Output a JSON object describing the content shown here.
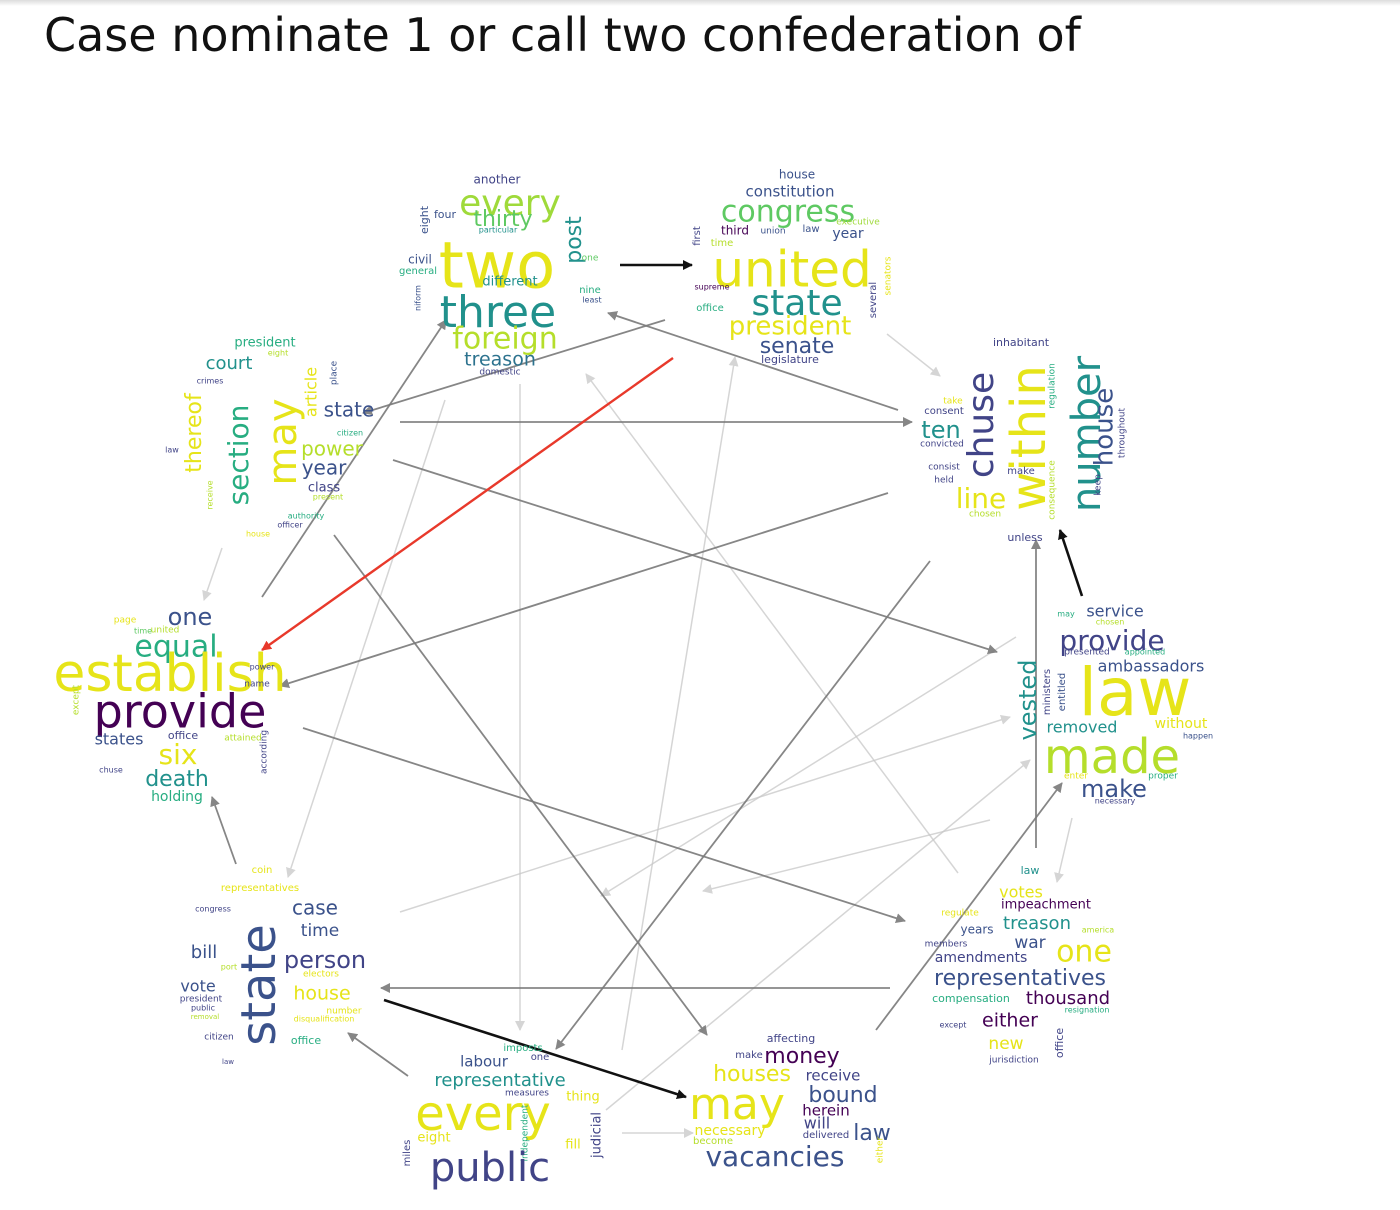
{
  "figure": {
    "title": "Case nominate 1 or call two confederation of"
  },
  "palette": {
    "highlight_edge": "#e8392b",
    "strong_edge": "#111111",
    "mid_edge": "#7a7a7a",
    "light_edge": "#c8c8c8",
    "word_colors": [
      "#440154",
      "#3b528b",
      "#21918c",
      "#2c728e",
      "#5ec962",
      "#b5de2b",
      "#e6e419",
      "#414487",
      "#27ad81",
      "#9fda3a"
    ]
  },
  "nodes": [
    {
      "id": "A",
      "words": [
        {
          "t": "another"
        },
        {
          "t": "every"
        },
        {
          "t": "four"
        },
        {
          "t": "thirty"
        },
        {
          "t": "particular"
        },
        {
          "t": "eight"
        },
        {
          "t": "two"
        },
        {
          "t": "post"
        },
        {
          "t": "one"
        },
        {
          "t": "civil"
        },
        {
          "t": "general"
        },
        {
          "t": "different"
        },
        {
          "t": "nine"
        },
        {
          "t": "least"
        },
        {
          "t": "niform"
        },
        {
          "t": "three"
        },
        {
          "t": "foreign"
        },
        {
          "t": "treason"
        },
        {
          "t": "domestic"
        }
      ]
    },
    {
      "id": "B",
      "words": [
        {
          "t": "house"
        },
        {
          "t": "constitution"
        },
        {
          "t": "congress"
        },
        {
          "t": "executive"
        },
        {
          "t": "third"
        },
        {
          "t": "union"
        },
        {
          "t": "law"
        },
        {
          "t": "year"
        },
        {
          "t": "first"
        },
        {
          "t": "time"
        },
        {
          "t": "united"
        },
        {
          "t": "supreme"
        },
        {
          "t": "state"
        },
        {
          "t": "office"
        },
        {
          "t": "several"
        },
        {
          "t": "senators"
        },
        {
          "t": "president"
        },
        {
          "t": "senate"
        },
        {
          "t": "legislature"
        }
      ]
    },
    {
      "id": "C",
      "words": [
        {
          "t": "inhabitant"
        },
        {
          "t": "take"
        },
        {
          "t": "consent"
        },
        {
          "t": "ten"
        },
        {
          "t": "convicted"
        },
        {
          "t": "number"
        },
        {
          "t": "consist"
        },
        {
          "t": "held"
        },
        {
          "t": "chuse"
        },
        {
          "t": "within"
        },
        {
          "t": "regulation"
        },
        {
          "t": "make"
        },
        {
          "t": "line"
        },
        {
          "t": "chosen"
        },
        {
          "t": "consequence"
        },
        {
          "t": "house"
        },
        {
          "t": "keep"
        },
        {
          "t": "throughout"
        },
        {
          "t": "unless"
        }
      ]
    },
    {
      "id": "D",
      "words": [
        {
          "t": "may"
        },
        {
          "t": "service"
        },
        {
          "t": "chosen"
        },
        {
          "t": "provide"
        },
        {
          "t": "presented"
        },
        {
          "t": "appointed"
        },
        {
          "t": "ministers"
        },
        {
          "t": "entitled"
        },
        {
          "t": "ambassadors"
        },
        {
          "t": "vested"
        },
        {
          "t": "law"
        },
        {
          "t": "removed"
        },
        {
          "t": "without"
        },
        {
          "t": "happen"
        },
        {
          "t": "made"
        },
        {
          "t": "enter"
        },
        {
          "t": "proper"
        },
        {
          "t": "make"
        },
        {
          "t": "necessary"
        }
      ]
    },
    {
      "id": "E",
      "words": [
        {
          "t": "law"
        },
        {
          "t": "votes"
        },
        {
          "t": "impeachment"
        },
        {
          "t": "regulate"
        },
        {
          "t": "treason"
        },
        {
          "t": "america"
        },
        {
          "t": "years"
        },
        {
          "t": "members"
        },
        {
          "t": "war"
        },
        {
          "t": "one"
        },
        {
          "t": "amendments"
        },
        {
          "t": "representatives"
        },
        {
          "t": "compensation"
        },
        {
          "t": "thousand"
        },
        {
          "t": "resignation"
        },
        {
          "t": "except"
        },
        {
          "t": "either"
        },
        {
          "t": "new"
        },
        {
          "t": "jurisdiction"
        },
        {
          "t": "office"
        }
      ]
    },
    {
      "id": "F",
      "words": [
        {
          "t": "affecting"
        },
        {
          "t": "make"
        },
        {
          "t": "money"
        },
        {
          "t": "houses"
        },
        {
          "t": "receive"
        },
        {
          "t": "may"
        },
        {
          "t": "bound"
        },
        {
          "t": "herein"
        },
        {
          "t": "will"
        },
        {
          "t": "necessary"
        },
        {
          "t": "delivered"
        },
        {
          "t": "law"
        },
        {
          "t": "become"
        },
        {
          "t": "vacancies"
        },
        {
          "t": "either"
        }
      ]
    },
    {
      "id": "G",
      "words": [
        {
          "t": "imposts"
        },
        {
          "t": "labour"
        },
        {
          "t": "one"
        },
        {
          "t": "representative"
        },
        {
          "t": "measures"
        },
        {
          "t": "thing"
        },
        {
          "t": "every"
        },
        {
          "t": "eight"
        },
        {
          "t": "independent"
        },
        {
          "t": "fill"
        },
        {
          "t": "judicial"
        },
        {
          "t": "miles"
        },
        {
          "t": "public"
        }
      ]
    },
    {
      "id": "H",
      "words": [
        {
          "t": "coin"
        },
        {
          "t": "representatives"
        },
        {
          "t": "case"
        },
        {
          "t": "congress"
        },
        {
          "t": "time"
        },
        {
          "t": "bill"
        },
        {
          "t": "state"
        },
        {
          "t": "person"
        },
        {
          "t": "port"
        },
        {
          "t": "electors"
        },
        {
          "t": "vote"
        },
        {
          "t": "house"
        },
        {
          "t": "president"
        },
        {
          "t": "public"
        },
        {
          "t": "removal"
        },
        {
          "t": "number"
        },
        {
          "t": "disqualification"
        },
        {
          "t": "citizen"
        },
        {
          "t": "office"
        },
        {
          "t": "law"
        }
      ]
    },
    {
      "id": "I",
      "words": [
        {
          "t": "page"
        },
        {
          "t": "one"
        },
        {
          "t": "time"
        },
        {
          "t": "united"
        },
        {
          "t": "equal"
        },
        {
          "t": "establish"
        },
        {
          "t": "power"
        },
        {
          "t": "name"
        },
        {
          "t": "provide"
        },
        {
          "t": "except"
        },
        {
          "t": "states"
        },
        {
          "t": "office"
        },
        {
          "t": "attained"
        },
        {
          "t": "six"
        },
        {
          "t": "according"
        },
        {
          "t": "chuse"
        },
        {
          "t": "death"
        },
        {
          "t": "holding"
        },
        {
          "t": "without"
        }
      ]
    },
    {
      "id": "J",
      "words": [
        {
          "t": "president"
        },
        {
          "t": "eight"
        },
        {
          "t": "court"
        },
        {
          "t": "crimes"
        },
        {
          "t": "article"
        },
        {
          "t": "place"
        },
        {
          "t": "thereof"
        },
        {
          "t": "state"
        },
        {
          "t": "may"
        },
        {
          "t": "citizen"
        },
        {
          "t": "section"
        },
        {
          "t": "power"
        },
        {
          "t": "law"
        },
        {
          "t": "year"
        },
        {
          "t": "class"
        },
        {
          "t": "present"
        },
        {
          "t": "receive"
        },
        {
          "t": "authority"
        },
        {
          "t": "officer"
        },
        {
          "t": "house"
        }
      ]
    }
  ],
  "edges": [
    {
      "from": "A",
      "to": "B",
      "weight": "strong"
    },
    {
      "from": "B",
      "to": "J",
      "weight": "mid"
    },
    {
      "from": "C",
      "to": "A",
      "weight": "mid"
    },
    {
      "from": "J",
      "to": "C",
      "weight": "mid"
    },
    {
      "from": "I",
      "to": "A",
      "weight": "mid"
    },
    {
      "from": "B",
      "to": "I",
      "weight": "highlight"
    },
    {
      "from": "C",
      "to": "I",
      "weight": "mid"
    },
    {
      "from": "D",
      "to": "C",
      "weight": "strong"
    },
    {
      "from": "E",
      "to": "C",
      "weight": "mid"
    },
    {
      "from": "J",
      "to": "D",
      "weight": "mid"
    },
    {
      "from": "I",
      "to": "E",
      "weight": "mid"
    },
    {
      "from": "E",
      "to": "H",
      "weight": "mid"
    },
    {
      "from": "H",
      "to": "F",
      "weight": "strong"
    },
    {
      "from": "F",
      "to": "D",
      "weight": "mid"
    },
    {
      "from": "C",
      "to": "G",
      "weight": "mid"
    },
    {
      "from": "J",
      "to": "F",
      "weight": "mid"
    },
    {
      "from": "G",
      "to": "H",
      "weight": "mid"
    },
    {
      "from": "H",
      "to": "I",
      "weight": "mid"
    },
    {
      "from": "B",
      "to": "C",
      "weight": "light"
    },
    {
      "from": "E",
      "to": "A",
      "weight": "light"
    },
    {
      "from": "F",
      "to": "B",
      "weight": "light"
    },
    {
      "from": "G",
      "to": "D",
      "weight": "light"
    },
    {
      "from": "D",
      "to": "E",
      "weight": "light"
    },
    {
      "from": "G",
      "to": "F",
      "weight": "light"
    },
    {
      "from": "J",
      "to": "I",
      "weight": "light"
    },
    {
      "from": "A",
      "to": "H",
      "weight": "light"
    },
    {
      "from": "F",
      "to": "G",
      "weight": "light"
    },
    {
      "from": "A",
      "to": "G",
      "weight": "light"
    },
    {
      "from": "I",
      "to": "D",
      "weight": "light"
    },
    {
      "from": "C",
      "to": "F",
      "weight": "light"
    }
  ]
}
